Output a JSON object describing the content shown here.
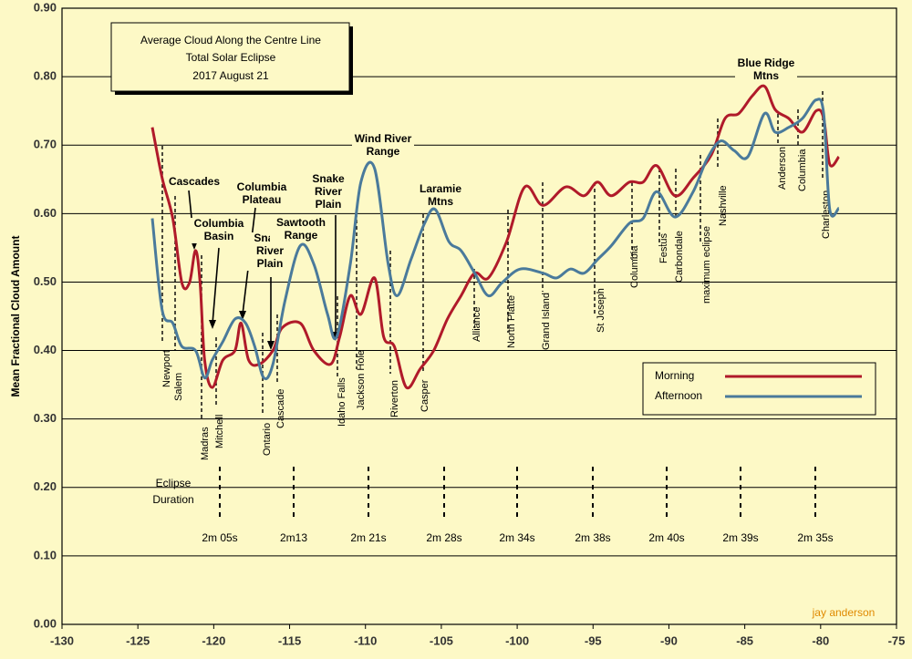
{
  "chart_data": {
    "type": "line",
    "title": "Average Cloud Along the Centre Line",
    "subtitle": [
      "Total Solar Eclipse",
      "2017 August 21"
    ],
    "ylabel": "Mean Fractional Cloud Amount",
    "xlim": [
      -130,
      -75
    ],
    "xticks": [
      -130,
      -125,
      -120,
      -115,
      -110,
      -105,
      -100,
      -95,
      -90,
      -85,
      -80,
      -75
    ],
    "ylim": [
      0,
      0.9
    ],
    "yticks": [
      {
        "value": 0,
        "label": "0.00"
      },
      {
        "value": 0.1,
        "label": "0.10"
      },
      {
        "value": 0.2,
        "label": "0.20"
      },
      {
        "value": 0.3,
        "label": "0.30"
      },
      {
        "value": 0.4,
        "label": "0.40"
      },
      {
        "value": 0.5,
        "label": "0.50"
      },
      {
        "value": 0.6,
        "label": "0.60"
      },
      {
        "value": 0.7,
        "label": "0.70"
      },
      {
        "value": 0.8,
        "label": "0.80"
      },
      {
        "value": 0.9,
        "label": "0.90"
      }
    ],
    "grid": true,
    "series": [
      {
        "name": "Morning",
        "color": "#b01a2a",
        "x": [
          -124.05,
          -123.4,
          -122.7,
          -122.1,
          -121.6,
          -121.2,
          -120.9,
          -120.6,
          -120.1,
          -119.4,
          -118.6,
          -118.2,
          -117.7,
          -117.0,
          -116.1,
          -115.5,
          -114.3,
          -113.4,
          -112.3,
          -111.7,
          -111.0,
          -110.3,
          -109.4,
          -108.8,
          -108.1,
          -107.3,
          -106.4,
          -105.5,
          -104.6,
          -103.7,
          -102.8,
          -101.9,
          -100.7,
          -99.5,
          -98.3,
          -96.8,
          -95.6,
          -94.7,
          -93.8,
          -92.6,
          -91.7,
          -90.8,
          -89.6,
          -88.4,
          -87.2,
          -86.3,
          -85.4,
          -84.5,
          -83.7,
          -83.0,
          -82.1,
          -81.2,
          -80.3,
          -79.8,
          -79.4,
          -78.8
        ],
        "values": [
          0.726,
          0.652,
          0.593,
          0.499,
          0.499,
          0.546,
          0.499,
          0.386,
          0.346,
          0.386,
          0.4,
          0.44,
          0.386,
          0.38,
          0.4,
          0.433,
          0.44,
          0.4,
          0.38,
          0.42,
          0.48,
          0.453,
          0.506,
          0.42,
          0.406,
          0.346,
          0.373,
          0.4,
          0.446,
          0.48,
          0.513,
          0.506,
          0.559,
          0.639,
          0.612,
          0.639,
          0.626,
          0.646,
          0.626,
          0.646,
          0.646,
          0.67,
          0.626,
          0.652,
          0.686,
          0.739,
          0.746,
          0.772,
          0.786,
          0.752,
          0.739,
          0.719,
          0.75,
          0.739,
          0.672,
          0.683
        ]
      },
      {
        "name": "Afternoon",
        "color": "#4a7a9b",
        "x": [
          -124.05,
          -123.4,
          -122.7,
          -122.1,
          -121.2,
          -120.6,
          -120.1,
          -119.4,
          -118.6,
          -117.9,
          -117.3,
          -116.7,
          -116.1,
          -115.3,
          -114.3,
          -113.4,
          -112.5,
          -111.9,
          -111.0,
          -110.3,
          -109.4,
          -108.5,
          -107.9,
          -107.0,
          -106.1,
          -105.4,
          -104.5,
          -103.7,
          -102.8,
          -101.9,
          -101.0,
          -99.8,
          -98.3,
          -97.4,
          -96.5,
          -95.6,
          -94.7,
          -93.8,
          -92.6,
          -91.7,
          -90.8,
          -89.6,
          -88.4,
          -87.5,
          -86.6,
          -85.7,
          -84.8,
          -83.7,
          -83.0,
          -82.1,
          -81.2,
          -80.3,
          -79.8,
          -79.4,
          -78.8
        ],
        "values": [
          0.593,
          0.459,
          0.44,
          0.406,
          0.4,
          0.36,
          0.386,
          0.413,
          0.446,
          0.44,
          0.406,
          0.36,
          0.38,
          0.473,
          0.553,
          0.526,
          0.453,
          0.42,
          0.526,
          0.646,
          0.666,
          0.526,
          0.48,
          0.533,
          0.586,
          0.606,
          0.559,
          0.546,
          0.513,
          0.48,
          0.499,
          0.519,
          0.513,
          0.506,
          0.519,
          0.513,
          0.533,
          0.553,
          0.586,
          0.593,
          0.632,
          0.595,
          0.632,
          0.679,
          0.706,
          0.692,
          0.683,
          0.746,
          0.719,
          0.726,
          0.739,
          0.766,
          0.746,
          0.606,
          0.608
        ]
      }
    ],
    "locations": [
      "Newport",
      "Salem",
      "Madras",
      "Mitchell",
      "Ontario",
      "Cascade",
      "Idaho Falls",
      "Jackson Hole",
      "Riverton",
      "Casper",
      "Alliance",
      "North Platte",
      "Grand Island",
      "St Joseph",
      "Columbia",
      "Festus",
      "Carbondale",
      "maximum eclipse",
      "Nashville",
      "Anderson",
      "Columbia",
      "Charleston"
    ],
    "regions": [
      [
        "Cascades"
      ],
      [
        "Columbia",
        "Basin"
      ],
      [
        "Columbia",
        "Plateau"
      ],
      [
        "Snake",
        "River",
        "Plain"
      ],
      [
        "Sawtooth",
        "Range"
      ],
      [
        "Snake",
        "River",
        "Plain"
      ],
      [
        "Wind River",
        "Range"
      ],
      [
        "Laramie",
        "Mtns"
      ],
      [
        "Blue Ridge",
        "Mtns"
      ]
    ],
    "eclipse_label": [
      "Eclipse",
      "Duration"
    ],
    "durations": [
      "2m 05s",
      "2m13",
      "2m 21s",
      "2m 28s",
      "2m 34s",
      "2m 38s",
      "2m 40s",
      "2m 39s",
      "2m 35s"
    ],
    "credit": "jay anderson"
  }
}
